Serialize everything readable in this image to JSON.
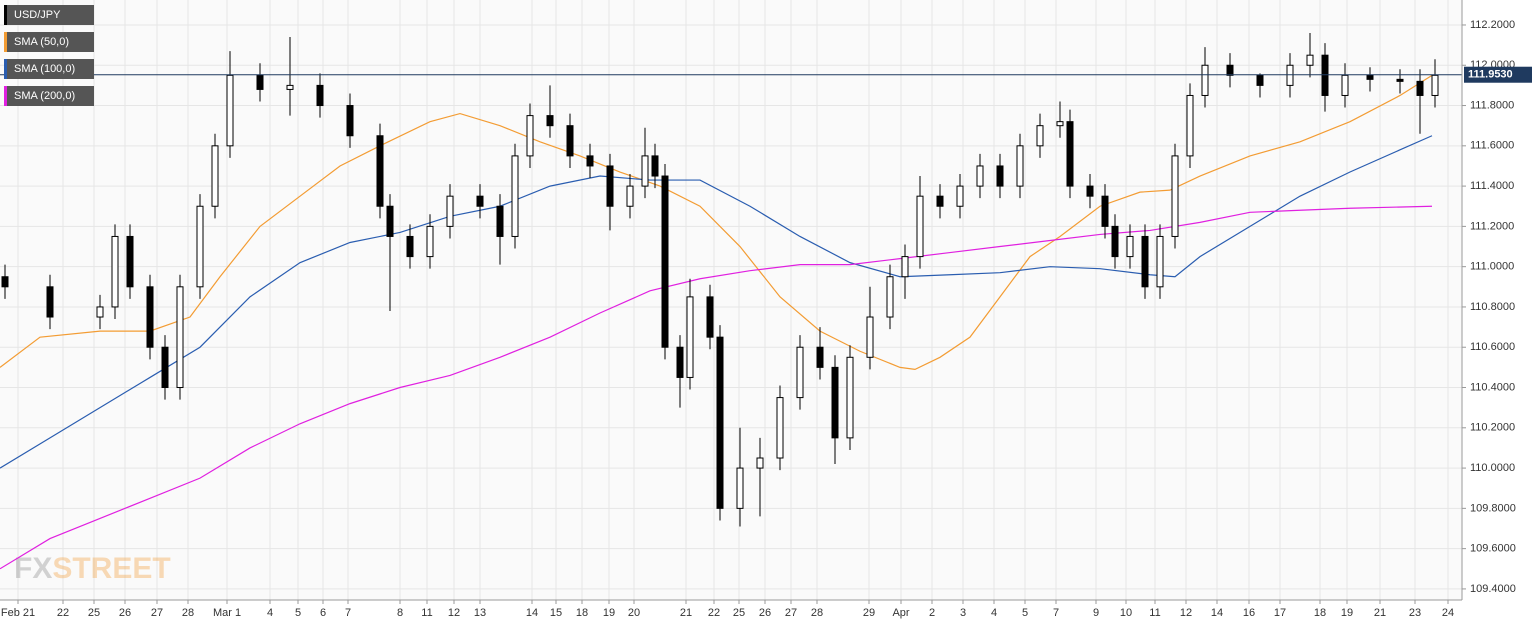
{
  "chart_data": {
    "type": "candlestick",
    "name": "USD/JPY",
    "legend_color": "#000000",
    "up_color": "#ffffff",
    "down_color": "#000000",
    "x": [
      5,
      50,
      100,
      115,
      130,
      150,
      165,
      180,
      200,
      215,
      230,
      260,
      290,
      320,
      350,
      380,
      390,
      410,
      430,
      450,
      480,
      500,
      515,
      530,
      550,
      570,
      590,
      610,
      630,
      645,
      655,
      665,
      680,
      690,
      710,
      720,
      740,
      760,
      780,
      800,
      820,
      835,
      850,
      870,
      890,
      905,
      920,
      940,
      960,
      980,
      1000,
      1020,
      1040,
      1060,
      1070,
      1090,
      1105,
      1115,
      1130,
      1145,
      1160,
      1175,
      1190,
      1205,
      1230,
      1260,
      1290,
      1310,
      1325,
      1345,
      1370,
      1400,
      1420,
      1435
    ],
    "open": [
      110.95,
      110.9,
      110.75,
      110.8,
      111.15,
      110.9,
      110.6,
      110.4,
      110.9,
      111.3,
      111.6,
      111.95,
      111.88,
      111.9,
      111.8,
      111.65,
      111.3,
      111.15,
      111.05,
      111.2,
      111.35,
      111.3,
      111.15,
      111.55,
      111.75,
      111.7,
      111.55,
      111.5,
      111.3,
      111.4,
      111.55,
      111.45,
      110.6,
      110.45,
      110.85,
      110.65,
      109.8,
      110.0,
      110.05,
      110.35,
      110.6,
      110.5,
      110.15,
      110.55,
      110.75,
      110.95,
      111.05,
      111.35,
      111.3,
      111.4,
      111.5,
      111.4,
      111.6,
      111.7,
      111.72,
      111.4,
      111.35,
      111.2,
      111.05,
      111.15,
      110.9,
      111.15,
      111.55,
      111.85,
      112.0,
      111.95,
      111.9,
      112.0,
      112.05,
      111.85,
      111.95,
      111.93,
      111.92,
      111.85
    ],
    "high": [
      111.01,
      110.96,
      110.86,
      111.21,
      111.21,
      110.96,
      110.66,
      110.96,
      111.36,
      111.66,
      112.07,
      112.01,
      112.14,
      111.96,
      111.86,
      111.71,
      111.36,
      111.21,
      111.26,
      111.41,
      111.41,
      111.36,
      111.61,
      111.81,
      111.9,
      111.76,
      111.61,
      111.56,
      111.46,
      111.69,
      111.61,
      111.51,
      110.66,
      110.94,
      110.91,
      110.71,
      110.2,
      110.15,
      110.41,
      110.66,
      110.7,
      110.56,
      110.61,
      110.9,
      111.01,
      111.11,
      111.45,
      111.41,
      111.46,
      111.56,
      111.56,
      111.66,
      111.76,
      111.82,
      111.78,
      111.46,
      111.41,
      111.26,
      111.21,
      111.21,
      111.21,
      111.61,
      111.91,
      112.09,
      112.06,
      111.96,
      112.06,
      112.16,
      112.11,
      112.01,
      111.99,
      111.98,
      111.98,
      112.03
    ],
    "low": [
      110.84,
      110.69,
      110.69,
      110.74,
      110.84,
      110.54,
      110.34,
      110.34,
      110.84,
      111.24,
      111.54,
      111.82,
      111.75,
      111.74,
      111.59,
      111.24,
      110.78,
      110.99,
      110.99,
      111.14,
      111.24,
      111.01,
      111.09,
      111.49,
      111.64,
      111.49,
      111.44,
      111.18,
      111.24,
      111.34,
      111.39,
      110.54,
      110.3,
      110.39,
      110.59,
      109.74,
      109.71,
      109.76,
      109.99,
      110.29,
      110.44,
      110.02,
      110.09,
      110.49,
      110.69,
      110.84,
      110.99,
      111.24,
      111.24,
      111.34,
      111.34,
      111.34,
      111.54,
      111.64,
      111.34,
      111.29,
      111.14,
      110.99,
      110.99,
      110.84,
      110.84,
      111.09,
      111.49,
      111.79,
      111.89,
      111.84,
      111.84,
      111.94,
      111.77,
      111.79,
      111.87,
      111.86,
      111.66,
      111.79
    ],
    "close": [
      110.9,
      110.75,
      110.8,
      111.15,
      110.9,
      110.6,
      110.4,
      110.9,
      111.3,
      111.6,
      111.95,
      111.88,
      111.9,
      111.8,
      111.65,
      111.3,
      111.15,
      111.05,
      111.2,
      111.35,
      111.3,
      111.15,
      111.55,
      111.75,
      111.7,
      111.55,
      111.5,
      111.3,
      111.4,
      111.55,
      111.45,
      110.6,
      110.45,
      110.85,
      110.65,
      109.8,
      110.0,
      110.05,
      110.35,
      110.6,
      110.5,
      110.15,
      110.55,
      110.75,
      110.95,
      111.05,
      111.35,
      111.3,
      111.4,
      111.5,
      111.4,
      111.6,
      111.7,
      111.72,
      111.4,
      111.35,
      111.2,
      111.05,
      111.15,
      110.9,
      111.15,
      111.55,
      111.85,
      112.0,
      111.95,
      111.9,
      112.0,
      112.05,
      111.85,
      111.95,
      111.93,
      111.92,
      111.85,
      111.95
    ],
    "overlays": [
      {
        "name": "SMA (50,0)",
        "color": "#f39c33",
        "x": [
          0,
          40,
          100,
          150,
          190,
          220,
          260,
          300,
          340,
          380,
          430,
          460,
          500,
          540,
          580,
          620,
          660,
          700,
          740,
          780,
          820,
          860,
          900,
          915,
          940,
          970,
          1000,
          1030,
          1060,
          1100,
          1140,
          1170,
          1200,
          1250,
          1300,
          1350,
          1400,
          1432
        ],
        "values": [
          110.5,
          110.65,
          110.68,
          110.68,
          110.75,
          110.95,
          111.2,
          111.35,
          111.5,
          111.6,
          111.72,
          111.76,
          111.7,
          111.62,
          111.55,
          111.47,
          111.4,
          111.3,
          111.1,
          110.85,
          110.68,
          110.58,
          110.5,
          110.49,
          110.55,
          110.65,
          110.85,
          111.05,
          111.15,
          111.3,
          111.37,
          111.38,
          111.45,
          111.55,
          111.62,
          111.72,
          111.85,
          111.95
        ]
      },
      {
        "name": "SMA (100,0)",
        "color": "#2a5db0",
        "x": [
          0,
          50,
          100,
          150,
          200,
          250,
          300,
          350,
          400,
          450,
          500,
          550,
          600,
          650,
          700,
          750,
          800,
          850,
          900,
          950,
          1000,
          1050,
          1100,
          1150,
          1175,
          1200,
          1250,
          1300,
          1350,
          1400,
          1432
        ],
        "values": [
          110.0,
          110.15,
          110.3,
          110.45,
          110.6,
          110.85,
          111.02,
          111.12,
          111.17,
          111.25,
          111.3,
          111.4,
          111.45,
          111.43,
          111.43,
          111.3,
          111.15,
          111.02,
          110.95,
          110.96,
          110.97,
          111.0,
          110.99,
          110.96,
          110.95,
          111.05,
          111.2,
          111.35,
          111.47,
          111.58,
          111.65
        ]
      },
      {
        "name": "SMA (200,0)",
        "color": "#e020e0",
        "x": [
          0,
          50,
          100,
          150,
          200,
          250,
          300,
          350,
          400,
          450,
          500,
          550,
          600,
          650,
          700,
          750,
          800,
          850,
          900,
          950,
          1000,
          1050,
          1100,
          1150,
          1200,
          1250,
          1300,
          1350,
          1432
        ],
        "values": [
          109.5,
          109.65,
          109.75,
          109.85,
          109.95,
          110.1,
          110.22,
          110.32,
          110.4,
          110.46,
          110.55,
          110.65,
          110.77,
          110.88,
          110.94,
          110.98,
          111.01,
          111.01,
          111.04,
          111.07,
          111.1,
          111.13,
          111.16,
          111.18,
          111.22,
          111.27,
          111.28,
          111.29,
          111.3
        ]
      }
    ],
    "last_price": {
      "value": 111.953,
      "label": "111.9530"
    },
    "xlim": [
      0,
      1462
    ],
    "ylim": [
      109.345,
      112.324
    ],
    "yticks": [
      {
        "value": 109.4,
        "label": "109.4000"
      },
      {
        "value": 109.6,
        "label": "109.6000"
      },
      {
        "value": 109.8,
        "label": "109.8000"
      },
      {
        "value": 110.0,
        "label": "110.0000"
      },
      {
        "value": 110.2,
        "label": "110.2000"
      },
      {
        "value": 110.4,
        "label": "110.4000"
      },
      {
        "value": 110.6,
        "label": "110.6000"
      },
      {
        "value": 110.8,
        "label": "110.8000"
      },
      {
        "value": 111.0,
        "label": "111.0000"
      },
      {
        "value": 111.2,
        "label": "111.2000"
      },
      {
        "value": 111.4,
        "label": "111.4000"
      },
      {
        "value": 111.6,
        "label": "111.6000"
      },
      {
        "value": 111.8,
        "label": "111.8000"
      },
      {
        "value": 112.0,
        "label": "112.0000"
      },
      {
        "value": 112.2,
        "label": "112.2000"
      }
    ],
    "xticks": [
      {
        "value": 18,
        "label": "Feb 21"
      },
      {
        "value": 63,
        "label": "22"
      },
      {
        "value": 94,
        "label": "25"
      },
      {
        "value": 125,
        "label": "26"
      },
      {
        "value": 157,
        "label": "27"
      },
      {
        "value": 188,
        "label": "28"
      },
      {
        "value": 227,
        "label": "Mar 1"
      },
      {
        "value": 270,
        "label": "4"
      },
      {
        "value": 298,
        "label": "5"
      },
      {
        "value": 323,
        "label": "6"
      },
      {
        "value": 348,
        "label": "7"
      },
      {
        "value": 400,
        "label": "8"
      },
      {
        "value": 427,
        "label": "11"
      },
      {
        "value": 454,
        "label": "12"
      },
      {
        "value": 480,
        "label": "13"
      },
      {
        "value": 532,
        "label": "14"
      },
      {
        "value": 556,
        "label": "15"
      },
      {
        "value": 582,
        "label": "18"
      },
      {
        "value": 609,
        "label": "19"
      },
      {
        "value": 634,
        "label": "20"
      },
      {
        "value": 686,
        "label": "21"
      },
      {
        "value": 714,
        "label": "22"
      },
      {
        "value": 739,
        "label": "25"
      },
      {
        "value": 765,
        "label": "26"
      },
      {
        "value": 791,
        "label": "27"
      },
      {
        "value": 817,
        "label": "28"
      },
      {
        "value": 869,
        "label": "29"
      },
      {
        "value": 901,
        "label": "Apr"
      },
      {
        "value": 932,
        "label": "2"
      },
      {
        "value": 963,
        "label": "3"
      },
      {
        "value": 994,
        "label": "4"
      },
      {
        "value": 1025,
        "label": "5"
      },
      {
        "value": 1056,
        "label": "7"
      },
      {
        "value": 1096,
        "label": "9"
      },
      {
        "value": 1126,
        "label": "10"
      },
      {
        "value": 1155,
        "label": "11"
      },
      {
        "value": 1186,
        "label": "12"
      },
      {
        "value": 1217,
        "label": "14"
      },
      {
        "value": 1249,
        "label": "16"
      },
      {
        "value": 1280,
        "label": "17"
      },
      {
        "value": 1320,
        "label": "18"
      },
      {
        "value": 1347,
        "label": "19"
      },
      {
        "value": 1380,
        "label": "21"
      },
      {
        "value": 1415,
        "label": "23"
      },
      {
        "value": 1448,
        "label": "24"
      }
    ],
    "grid": true,
    "watermark": [
      "FX",
      "STREET"
    ]
  }
}
